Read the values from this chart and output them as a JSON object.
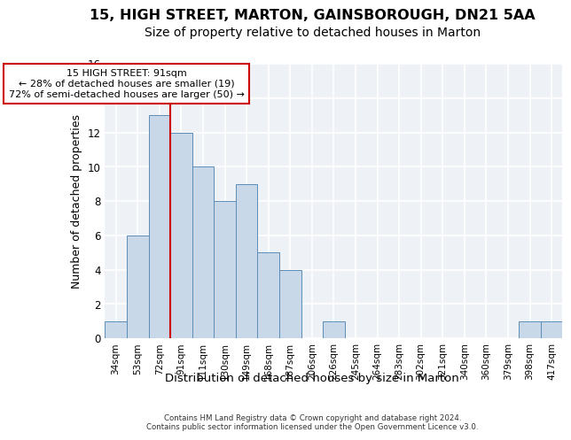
{
  "title1": "15, HIGH STREET, MARTON, GAINSBOROUGH, DN21 5AA",
  "title2": "Size of property relative to detached houses in Marton",
  "xlabel": "Distribution of detached houses by size in Marton",
  "ylabel": "Number of detached properties",
  "categories": [
    "34sqm",
    "53sqm",
    "72sqm",
    "91sqm",
    "111sqm",
    "130sqm",
    "149sqm",
    "168sqm",
    "187sqm",
    "206sqm",
    "226sqm",
    "245sqm",
    "264sqm",
    "283sqm",
    "302sqm",
    "321sqm",
    "340sqm",
    "360sqm",
    "379sqm",
    "398sqm",
    "417sqm"
  ],
  "values": [
    1,
    6,
    13,
    12,
    10,
    8,
    9,
    5,
    4,
    0,
    1,
    0,
    0,
    0,
    0,
    0,
    0,
    0,
    0,
    1,
    1
  ],
  "bar_color": "#c8d8e8",
  "bar_edge_color": "#5b8db8",
  "highlight_line_index": 3,
  "annotation_text": "15 HIGH STREET: 91sqm\n← 28% of detached houses are smaller (19)\n72% of semi-detached houses are larger (50) →",
  "annotation_box_color": "#cc0000",
  "footer": "Contains HM Land Registry data © Crown copyright and database right 2024.\nContains public sector information licensed under the Open Government Licence v3.0.",
  "ylim": [
    0,
    16
  ],
  "yticks": [
    0,
    2,
    4,
    6,
    8,
    10,
    12,
    14,
    16
  ],
  "background_color": "#eef2f7",
  "grid_color": "#ffffff",
  "title1_fontsize": 11.5,
  "title2_fontsize": 10,
  "xlabel_fontsize": 9.5,
  "ylabel_fontsize": 9
}
